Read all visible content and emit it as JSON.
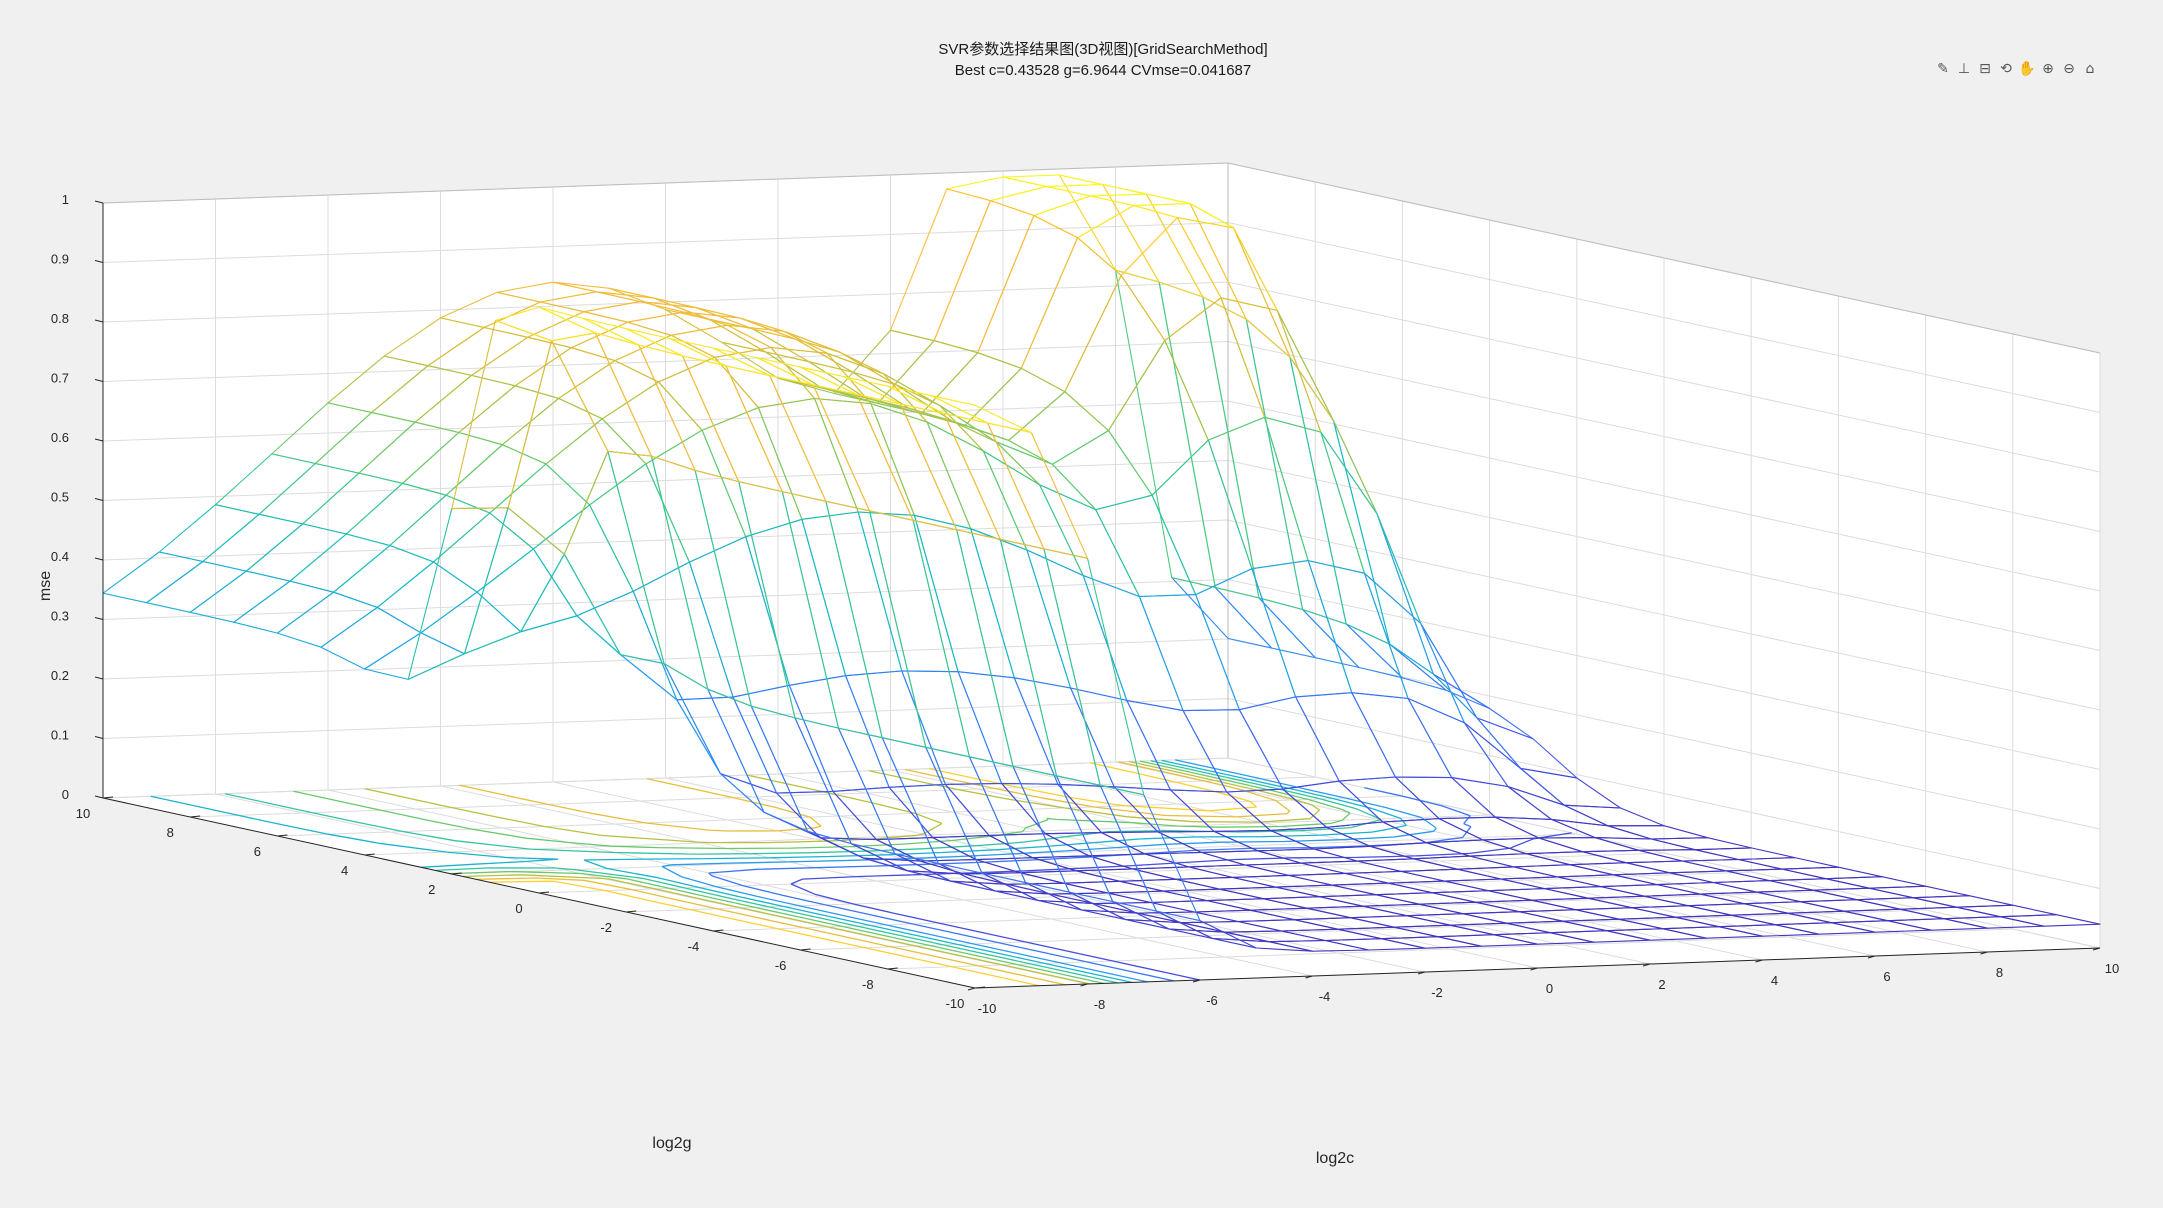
{
  "toolbar": {
    "icons": [
      "brush-icon",
      "data-tips-icon",
      "export-icon",
      "rotate-icon",
      "pan-icon",
      "zoom-in-icon",
      "zoom-out-icon",
      "home-icon"
    ],
    "glyphs": [
      "✎",
      "⊥",
      "⊟",
      "⟲",
      "✋",
      "⊕",
      "⊖",
      "⌂"
    ]
  },
  "chart_data": {
    "type": "surface",
    "title": "SVR参数选择结果图(3D视图)[GridSearchMethod]",
    "subtitle": "Best c=0.43528 g=6.9644 CVmse=0.041687",
    "xlabel": "log2c",
    "ylabel": "log2g",
    "zlabel": "mse",
    "xlim": [
      -10,
      10
    ],
    "ylim": [
      -10,
      10
    ],
    "zlim": [
      0,
      1
    ],
    "x_ticks": [
      -10,
      -8,
      -6,
      -4,
      -2,
      0,
      2,
      4,
      6,
      8,
      10
    ],
    "y_ticks": [
      -10,
      -8,
      -6,
      -4,
      -2,
      0,
      2,
      4,
      6,
      8,
      10
    ],
    "z_ticks": [
      0,
      0.1,
      0.2,
      0.3,
      0.4,
      0.5,
      0.6,
      0.7,
      0.8,
      0.9,
      1
    ],
    "grid": true,
    "colormap": "parula",
    "colors": [
      "#3e26a8",
      "#4760f3",
      "#2c97f5",
      "#17bbc5",
      "#50cc79",
      "#c5bf3a",
      "#fdbd3c",
      "#f9fb15"
    ],
    "x": [
      -10,
      -9,
      -8,
      -7,
      -6,
      -5,
      -4,
      -3,
      -2,
      -1,
      0,
      1,
      2,
      3,
      4,
      5,
      6,
      7,
      8,
      9,
      10
    ],
    "y": [
      -10,
      -9,
      -8,
      -7,
      -6,
      -5,
      -4,
      -3,
      -2,
      -1,
      0,
      1,
      2,
      3,
      4,
      5,
      6,
      7,
      8,
      9,
      10
    ],
    "contour_levels": [
      0.1,
      0.2,
      0.3,
      0.4,
      0.5,
      0.6,
      0.7,
      0.8,
      0.9
    ],
    "best": {
      "c": 0.43528,
      "g": 6.9644,
      "cvmse": 0.041687
    }
  }
}
